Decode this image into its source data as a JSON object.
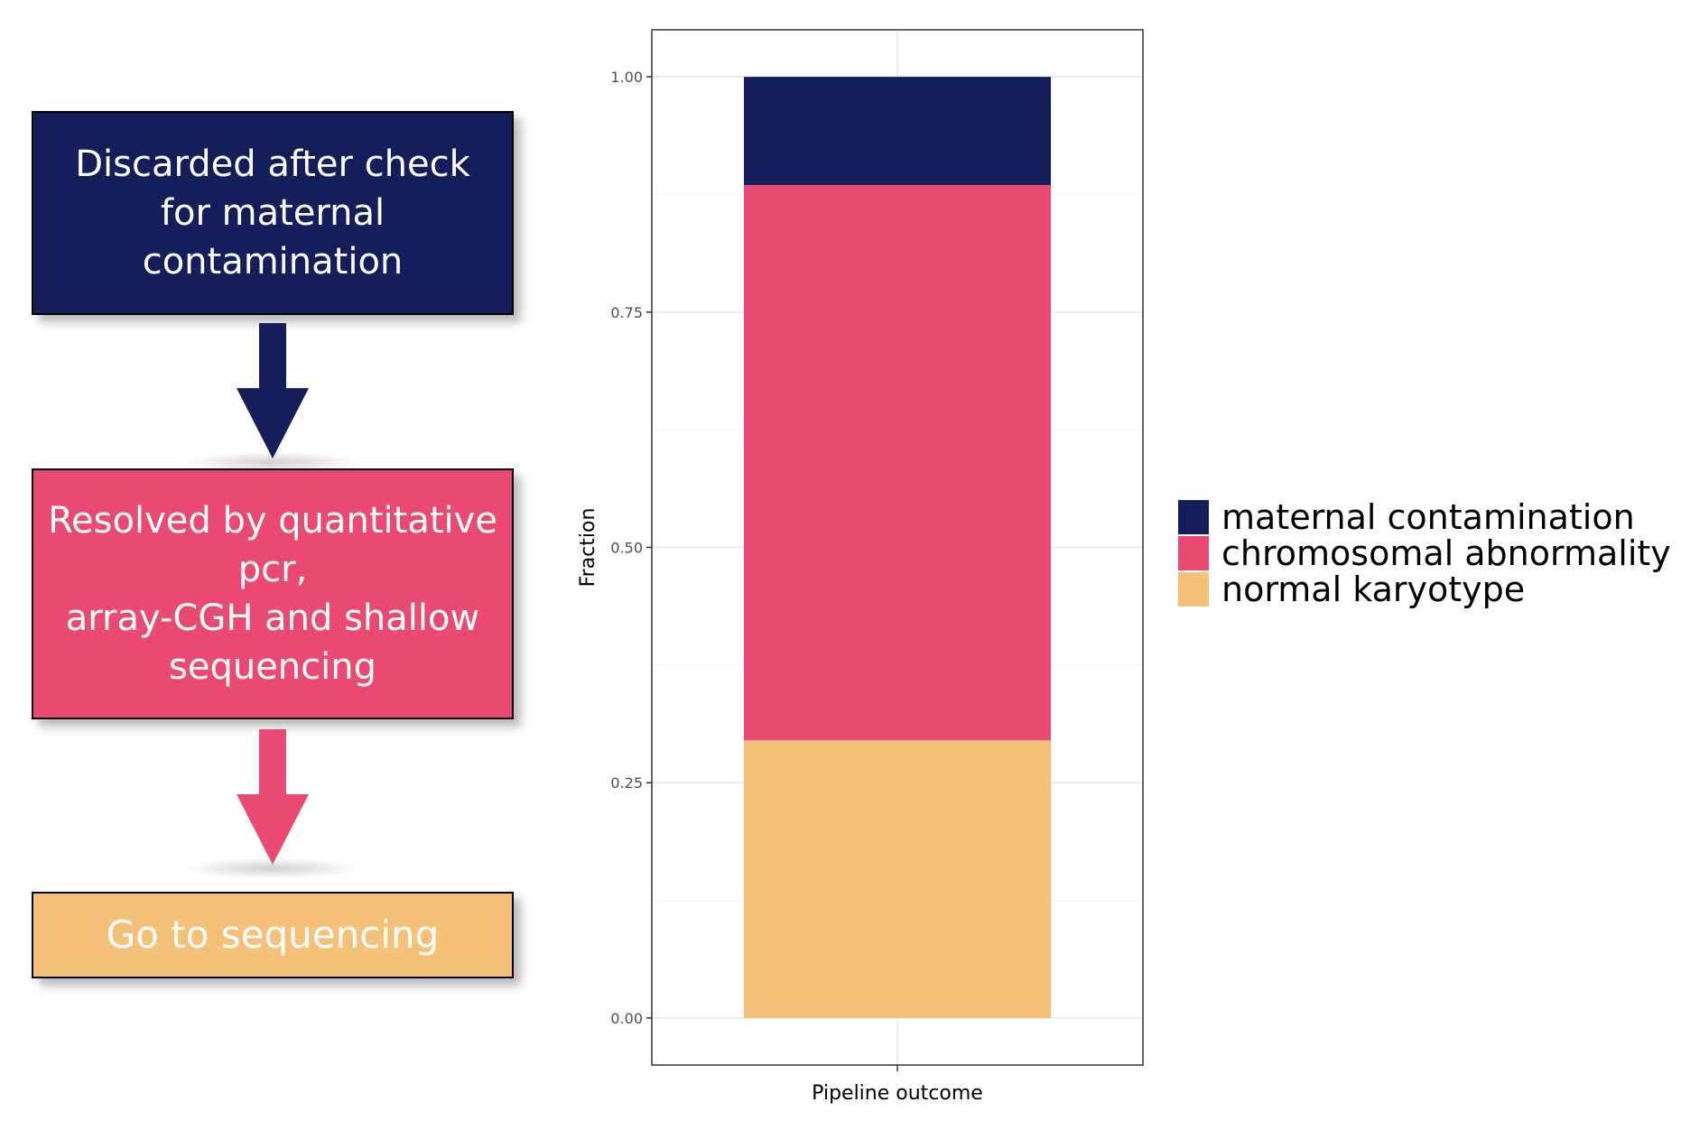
{
  "flow": {
    "box_top": {
      "text": "Discarded after check\nfor maternal\ncontamination",
      "color": "#141e5a"
    },
    "box_middle": {
      "text": "Resolved by quantitative\npcr,\narray-CGH and shallow\nsequencing",
      "color": "#ea4a72"
    },
    "box_bottom": {
      "text": "Go to sequencing",
      "color": "#f5c077"
    }
  },
  "chart_data": {
    "type": "bar",
    "stacked": true,
    "categories": [
      ""
    ],
    "xlabel": "Pipeline outcome",
    "ylabel": "Fraction",
    "ylim": [
      -0.05,
      1.05
    ],
    "yticks": [
      0.0,
      0.25,
      0.5,
      0.75,
      1.0
    ],
    "ytick_labels": [
      "0.00",
      "0.25",
      "0.50",
      "0.75",
      "1.00"
    ],
    "grid": true,
    "legend_position": "right",
    "series": [
      {
        "name": "normal karyotype",
        "values": [
          0.295
        ],
        "color": "#f5c077"
      },
      {
        "name": "chromosomal abnormality",
        "values": [
          0.59
        ],
        "color": "#ea4a72"
      },
      {
        "name": "maternal contamination",
        "values": [
          0.115
        ],
        "color": "#141e5a"
      }
    ],
    "legend_order": [
      "maternal contamination",
      "chromosomal abnormality",
      "normal karyotype"
    ]
  }
}
